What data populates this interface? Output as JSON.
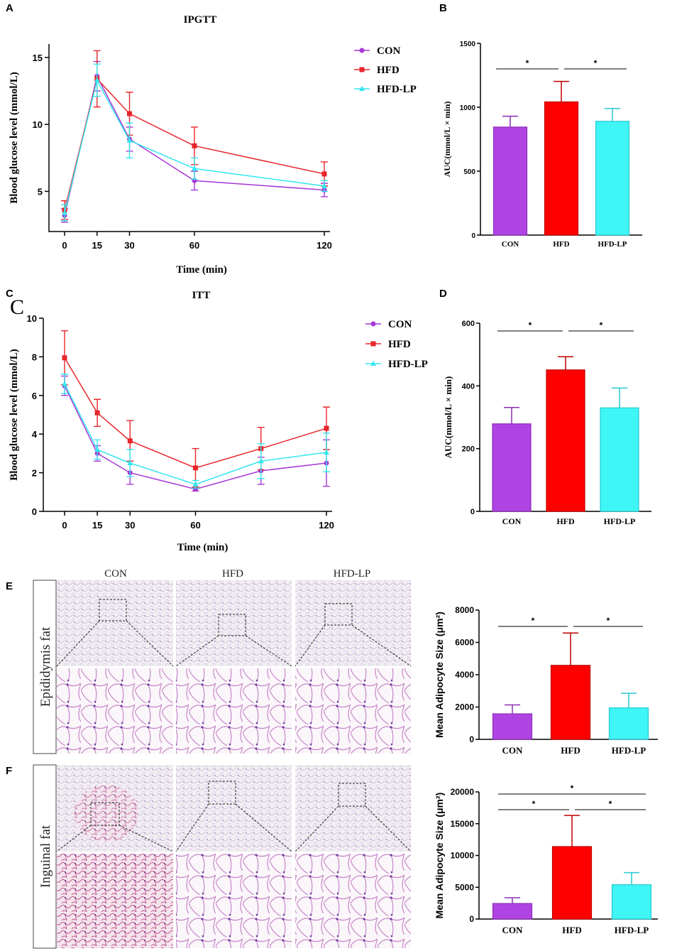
{
  "colors": {
    "CON": "#a737d6",
    "HFD": "#e8262b",
    "HFD-LP": "#35e6ef",
    "CON_bar": "#b044e3",
    "HFD_bar": "#ff0000",
    "HFDLP_bar": "#3ff5f5"
  },
  "panel_letters": {
    "A": "A",
    "B": "B",
    "C": "C",
    "C_big": "C",
    "D": "D",
    "E": "E",
    "F": "F"
  },
  "histology": {
    "columns": [
      "CON",
      "HFD",
      "HFD-LP"
    ],
    "rows": [
      "Epididymis fat",
      "Inguinal fat"
    ]
  },
  "chart_data": [
    {
      "id": "A",
      "type": "line",
      "title": "IPGTT",
      "xlabel": "Time (min)",
      "ylabel": "Blood glucose level (mmol/L)",
      "x": [
        0,
        15,
        30,
        60,
        120
      ],
      "xticks": [
        "0",
        "15",
        "30",
        "60",
        "120"
      ],
      "ylim": [
        2,
        16
      ],
      "yticks": [
        5,
        10,
        15
      ],
      "legend_position": "top-right",
      "series": [
        {
          "name": "CON",
          "values": [
            3.2,
            13.6,
            8.9,
            5.8,
            5.1
          ],
          "err": [
            0.5,
            1.1,
            0.9,
            0.7,
            0.5
          ]
        },
        {
          "name": "HFD",
          "values": [
            3.6,
            13.4,
            10.8,
            8.4,
            6.3
          ],
          "err": [
            0.7,
            2.1,
            1.6,
            1.4,
            0.9
          ]
        },
        {
          "name": "HFD-LP",
          "values": [
            3.4,
            13.3,
            8.8,
            6.7,
            5.4
          ],
          "err": [
            0.6,
            1.2,
            1.3,
            0.8,
            0.4
          ]
        }
      ]
    },
    {
      "id": "B",
      "type": "bar",
      "ylabel": "AUC(mmol/L × min)",
      "categories": [
        "CON",
        "HFD",
        "HFD-LP"
      ],
      "values": [
        845,
        1042,
        890
      ],
      "err": [
        85,
        160,
        100
      ],
      "ylim": [
        0,
        1500
      ],
      "yticks": [
        0,
        500,
        1000,
        1500
      ],
      "significance": [
        {
          "from": 0,
          "to": 1,
          "label": "*",
          "level": 1
        },
        {
          "from": 1,
          "to": 2,
          "label": "*",
          "level": 1
        }
      ]
    },
    {
      "id": "C",
      "type": "line",
      "title": "ITT",
      "xlabel": "Time (min)",
      "ylabel": "Blood glucose level (mmol/L)",
      "x": [
        0,
        15,
        30,
        60,
        90,
        120
      ],
      "xticks": [
        "0",
        "15",
        "30",
        "60",
        "120"
      ],
      "xtick_values": [
        0,
        15,
        30,
        60,
        120
      ],
      "ylim": [
        0,
        10
      ],
      "yticks": [
        0,
        2,
        4,
        6,
        8,
        10
      ],
      "legend_position": "top-right",
      "series": [
        {
          "name": "CON",
          "values": [
            6.5,
            3.0,
            2.0,
            1.15,
            2.1,
            2.5
          ],
          "err": [
            0.5,
            0.4,
            0.6,
            0.1,
            0.7,
            1.2
          ]
        },
        {
          "name": "HFD",
          "values": [
            7.95,
            5.1,
            3.65,
            2.25,
            3.25,
            4.3
          ],
          "err": [
            1.4,
            0.7,
            1.05,
            1.0,
            1.1,
            1.1
          ]
        },
        {
          "name": "HFD-LP",
          "values": [
            6.6,
            3.2,
            2.5,
            1.4,
            2.6,
            3.05
          ],
          "err": [
            0.5,
            0.5,
            0.7,
            0.2,
            0.9,
            1.0
          ]
        }
      ]
    },
    {
      "id": "D",
      "type": "bar",
      "ylabel": "AUC(mmol/L × min)",
      "categories": [
        "CON",
        "HFD",
        "HFD-LP"
      ],
      "values": [
        279,
        451,
        330
      ],
      "err": [
        52,
        42,
        63
      ],
      "ylim": [
        0,
        600
      ],
      "yticks": [
        0,
        200,
        400,
        600
      ],
      "significance": [
        {
          "from": 0,
          "to": 1,
          "label": "*",
          "level": 1
        },
        {
          "from": 1,
          "to": 2,
          "label": "*",
          "level": 1
        }
      ]
    },
    {
      "id": "E",
      "type": "bar",
      "ylabel": "Mean Adipocyte Size (μm²)",
      "categories": [
        "CON",
        "HFD",
        "HFD-LP"
      ],
      "values": [
        1580,
        4580,
        1950
      ],
      "err": [
        550,
        2000,
        900
      ],
      "ylim": [
        0,
        8000
      ],
      "yticks": [
        0,
        2000,
        4000,
        6000,
        8000
      ],
      "significance": [
        {
          "from": 0,
          "to": 1,
          "label": "*",
          "level": 1
        },
        {
          "from": 1,
          "to": 2,
          "label": "*",
          "level": 1
        }
      ]
    },
    {
      "id": "F",
      "type": "bar",
      "ylabel": "Mean Adipocyte Size (μm²)",
      "categories": [
        "CON",
        "HFD",
        "HFD-LP"
      ],
      "values": [
        2450,
        11400,
        5400
      ],
      "err": [
        900,
        4900,
        1900
      ],
      "ylim": [
        0,
        20000
      ],
      "yticks": [
        0,
        5000,
        10000,
        15000,
        20000
      ],
      "significance": [
        {
          "from": 0,
          "to": 1,
          "label": "*",
          "level": 1
        },
        {
          "from": 1,
          "to": 2,
          "label": "*",
          "level": 1
        },
        {
          "from": 0,
          "to": 2,
          "label": "*",
          "level": 2
        }
      ]
    }
  ]
}
